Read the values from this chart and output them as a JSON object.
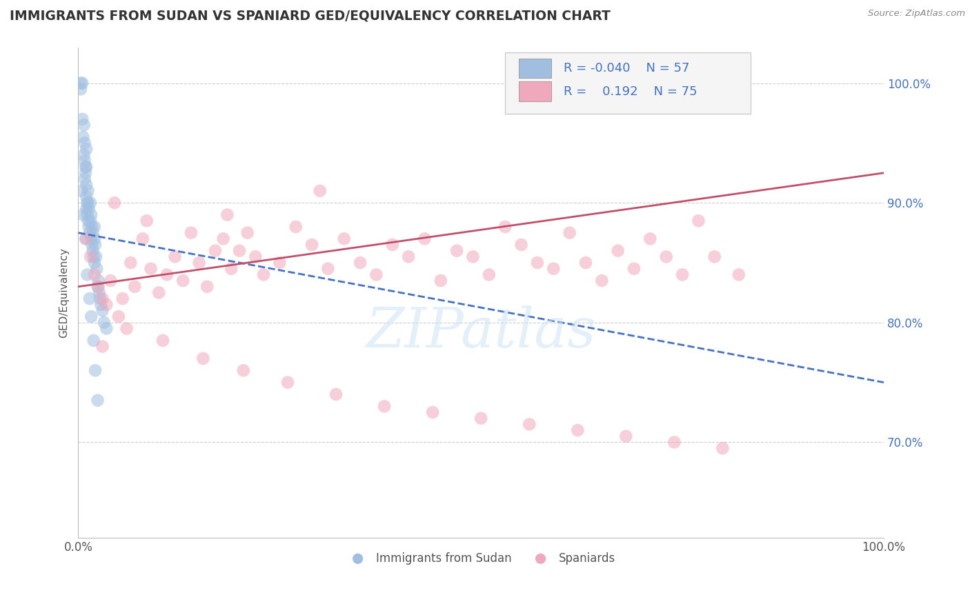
{
  "title": "IMMIGRANTS FROM SUDAN VS SPANIARD GED/EQUIVALENCY CORRELATION CHART",
  "source": "Source: ZipAtlas.com",
  "ylabel": "GED/Equivalency",
  "xlim": [
    0.0,
    100.0
  ],
  "ylim": [
    62.0,
    103.0
  ],
  "x_ticks": [
    0.0,
    100.0
  ],
  "x_tick_labels": [
    "0.0%",
    "100.0%"
  ],
  "y_tick_labels": [
    "70.0%",
    "80.0%",
    "90.0%",
    "100.0%"
  ],
  "y_ticks": [
    70.0,
    80.0,
    90.0,
    100.0
  ],
  "blue_color": "#a0bfe0",
  "pink_color": "#f0a8bc",
  "blue_line_color": "#4472c4",
  "pink_line_color": "#c0506a",
  "watermark": "ZIPatlas",
  "legend_r_blue": "-0.040",
  "legend_n_blue": "57",
  "legend_r_pink": "0.192",
  "legend_n_pink": "75",
  "legend_label_blue": "Immigrants from Sudan",
  "legend_label_pink": "Spaniards",
  "sudan_x": [
    0.3,
    0.3,
    0.5,
    0.5,
    0.6,
    0.7,
    0.7,
    0.8,
    0.8,
    0.8,
    0.9,
    0.9,
    1.0,
    1.0,
    1.0,
    1.0,
    1.0,
    1.1,
    1.1,
    1.2,
    1.2,
    1.2,
    1.3,
    1.3,
    1.4,
    1.5,
    1.5,
    1.6,
    1.6,
    1.7,
    1.7,
    1.8,
    1.8,
    1.9,
    2.0,
    2.0,
    2.0,
    2.1,
    2.2,
    2.3,
    2.4,
    2.5,
    2.6,
    2.7,
    2.8,
    3.0,
    3.2,
    3.5,
    0.4,
    0.6,
    0.9,
    1.1,
    1.4,
    1.6,
    1.9,
    2.1,
    2.4
  ],
  "sudan_y": [
    100.0,
    99.5,
    100.0,
    97.0,
    95.5,
    96.5,
    94.0,
    95.0,
    93.5,
    92.0,
    93.0,
    92.5,
    94.5,
    93.0,
    91.5,
    90.5,
    89.5,
    90.0,
    89.0,
    91.0,
    90.0,
    88.5,
    89.5,
    88.0,
    87.5,
    90.0,
    88.5,
    89.0,
    87.0,
    88.0,
    86.5,
    87.5,
    86.0,
    85.5,
    88.0,
    87.0,
    85.0,
    86.5,
    85.5,
    84.5,
    83.0,
    83.5,
    82.5,
    82.0,
    81.5,
    81.0,
    80.0,
    79.5,
    91.0,
    89.0,
    87.0,
    84.0,
    82.0,
    80.5,
    78.5,
    76.0,
    73.5
  ],
  "spain_x": [
    1.0,
    1.5,
    2.0,
    2.5,
    3.0,
    3.5,
    4.0,
    5.0,
    5.5,
    6.5,
    7.0,
    8.0,
    9.0,
    10.0,
    11.0,
    12.0,
    13.0,
    14.0,
    15.0,
    16.0,
    17.0,
    18.0,
    19.0,
    20.0,
    21.0,
    22.0,
    23.0,
    25.0,
    27.0,
    29.0,
    31.0,
    33.0,
    35.0,
    37.0,
    39.0,
    41.0,
    43.0,
    45.0,
    47.0,
    49.0,
    51.0,
    53.0,
    55.0,
    57.0,
    59.0,
    61.0,
    63.0,
    65.0,
    67.0,
    69.0,
    71.0,
    73.0,
    75.0,
    77.0,
    79.0,
    82.0,
    3.0,
    6.0,
    10.5,
    15.5,
    20.5,
    26.0,
    32.0,
    38.0,
    44.0,
    50.0,
    56.0,
    62.0,
    68.0,
    74.0,
    80.0,
    4.5,
    8.5,
    18.5,
    30.0
  ],
  "spain_y": [
    87.0,
    85.5,
    84.0,
    83.0,
    82.0,
    81.5,
    83.5,
    80.5,
    82.0,
    85.0,
    83.0,
    87.0,
    84.5,
    82.5,
    84.0,
    85.5,
    83.5,
    87.5,
    85.0,
    83.0,
    86.0,
    87.0,
    84.5,
    86.0,
    87.5,
    85.5,
    84.0,
    85.0,
    88.0,
    86.5,
    84.5,
    87.0,
    85.0,
    84.0,
    86.5,
    85.5,
    87.0,
    83.5,
    86.0,
    85.5,
    84.0,
    88.0,
    86.5,
    85.0,
    84.5,
    87.5,
    85.0,
    83.5,
    86.0,
    84.5,
    87.0,
    85.5,
    84.0,
    88.5,
    85.5,
    84.0,
    78.0,
    79.5,
    78.5,
    77.0,
    76.0,
    75.0,
    74.0,
    73.0,
    72.5,
    72.0,
    71.5,
    71.0,
    70.5,
    70.0,
    69.5,
    90.0,
    88.5,
    89.0,
    91.0
  ]
}
